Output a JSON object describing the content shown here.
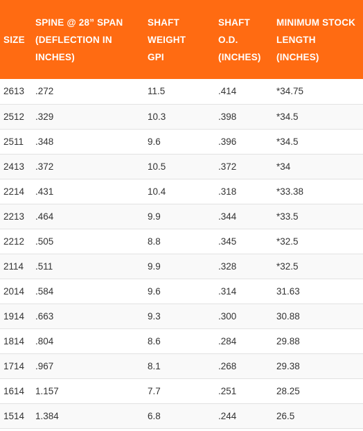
{
  "table": {
    "accent_color": "#ff6b12",
    "headers": [
      [
        "SIZE"
      ],
      [
        "SPINE @ 28” SPAN",
        "(DEFLECTION IN",
        "INCHES)"
      ],
      [
        "SHAFT",
        "WEIGHT",
        "GPI"
      ],
      [
        "SHAFT",
        "O.D.",
        "(INCHES)"
      ],
      [
        "MINIMUM STOCK",
        "LENGTH",
        "(INCHES)"
      ]
    ],
    "rows": [
      [
        "2613",
        ".272",
        "11.5",
        ".414",
        "*34.75"
      ],
      [
        "2512",
        ".329",
        "10.3",
        ".398",
        "*34.5"
      ],
      [
        "2511",
        ".348",
        "9.6",
        ".396",
        "*34.5"
      ],
      [
        "2413",
        ".372",
        "10.5",
        ".372",
        "*34"
      ],
      [
        "2214",
        ".431",
        "10.4",
        ".318",
        "*33.38"
      ],
      [
        "2213",
        ".464",
        "9.9",
        ".344",
        "*33.5"
      ],
      [
        "2212",
        ".505",
        "8.8",
        ".345",
        "*32.5"
      ],
      [
        "2114",
        ".511",
        "9.9",
        ".328",
        "*32.5"
      ],
      [
        "2014",
        ".584",
        "9.6",
        ".314",
        "31.63"
      ],
      [
        "1914",
        ".663",
        "9.3",
        ".300",
        "30.88"
      ],
      [
        "1814",
        ".804",
        "8.6",
        ".284",
        "29.88"
      ],
      [
        "1714",
        ".967",
        "8.1",
        ".268",
        "29.38"
      ],
      [
        "1614",
        "1.157",
        "7.7",
        ".251",
        "28.25"
      ],
      [
        "1514",
        "1.384",
        "6.8",
        ".244",
        "26.5"
      ]
    ]
  }
}
